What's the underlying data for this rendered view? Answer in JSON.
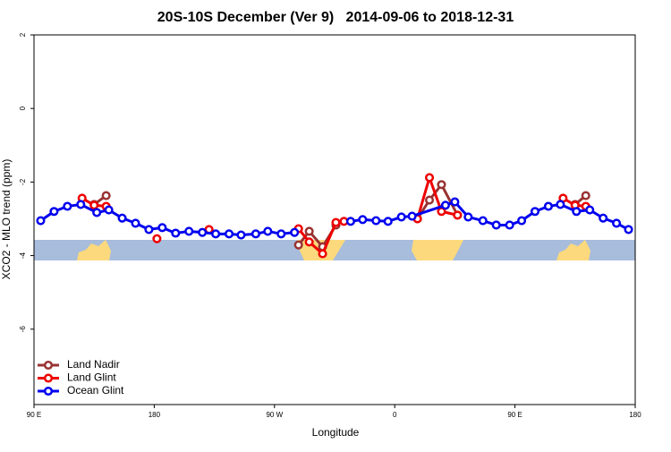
{
  "chart_data": {
    "type": "line",
    "title": "20S-10S December (Ver 9)   2014-09-06 to 2018-12-31",
    "x_label": "Longitude",
    "y_label": "XCO2 - MLO trend (ppm)",
    "xlim": [
      90,
      540
    ],
    "xticks": [
      {
        "value": 90,
        "label": "90 E"
      },
      {
        "value": 180,
        "label": "180"
      },
      {
        "value": 270,
        "label": "90 W"
      },
      {
        "value": 360,
        "label": "0"
      },
      {
        "value": 450,
        "label": "90 E"
      },
      {
        "value": 540,
        "label": "180"
      }
    ],
    "ylim": [
      -8.05,
      2
    ],
    "yticks": [
      2,
      0,
      -2,
      -4,
      -6
    ],
    "legend": "bottom-left",
    "series": [
      {
        "name": "Land Nadir",
        "color": "#993333",
        "x": [
          135,
          144,
          200,
          288,
          296,
          306,
          316,
          340,
          377,
          386,
          395,
          407,
          460,
          495,
          503
        ],
        "values": [
          -2.61,
          -2.37,
          null,
          -3.71,
          -3.34,
          -3.76,
          -3.17,
          null,
          -3.0,
          -2.49,
          -2.07,
          -2.9,
          null,
          -2.61,
          -2.37
        ]
      },
      {
        "name": "Land Glint",
        "color": "#ee0000",
        "x": [
          126,
          135,
          144,
          160,
          182,
          200,
          221,
          260,
          288,
          296,
          306,
          316,
          322,
          350,
          377,
          386,
          395,
          407,
          460,
          486,
          495,
          503
        ],
        "values": [
          -2.44,
          -2.63,
          -2.66,
          null,
          -3.54,
          null,
          -3.29,
          null,
          -3.27,
          -3.63,
          -3.95,
          -3.1,
          -3.07,
          null,
          -3.0,
          -1.88,
          -2.8,
          -2.9,
          null,
          -2.44,
          -2.63,
          -2.66
        ]
      },
      {
        "name": "Ocean Glint",
        "color": "#0000ee",
        "x": [
          95,
          105,
          115,
          125,
          137,
          146,
          156,
          166,
          176,
          186,
          196,
          206,
          216,
          226,
          236,
          245,
          256,
          265,
          275,
          285,
          300,
          327,
          336,
          346,
          355,
          365,
          373,
          398,
          405,
          415,
          426,
          436,
          446,
          455,
          465,
          475,
          484,
          496,
          506,
          516,
          526,
          535
        ],
        "values": [
          -3.05,
          -2.8,
          -2.66,
          -2.61,
          -2.83,
          -2.76,
          -2.98,
          -3.12,
          -3.29,
          -3.24,
          -3.39,
          -3.34,
          -3.37,
          -3.41,
          -3.41,
          -3.44,
          -3.41,
          -3.34,
          -3.41,
          -3.37,
          null,
          -3.07,
          -3.02,
          -3.05,
          -3.07,
          -2.95,
          -2.93,
          -2.63,
          -2.54,
          -2.95,
          -3.05,
          -3.17,
          -3.17,
          -3.05,
          -2.8,
          -2.66,
          -2.61,
          -2.8,
          -2.76,
          -2.98,
          -3.12,
          -3.29
        ]
      }
    ]
  }
}
